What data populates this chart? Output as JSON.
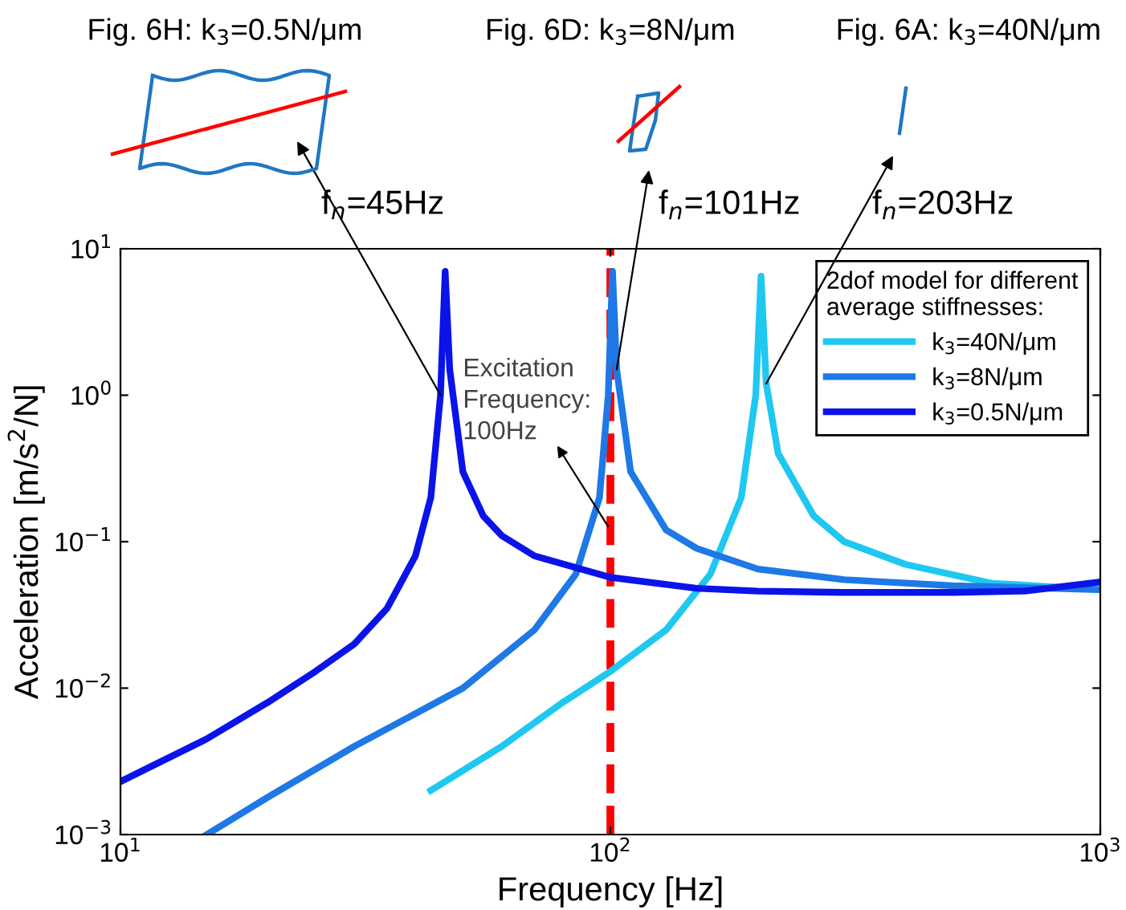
{
  "chart_data": {
    "type": "line",
    "xlabel": "Frequency [Hz]",
    "ylabel": "Acceleration [m/s$^{2}$/N]",
    "log": "xy",
    "xlim": [
      10,
      1000
    ],
    "ylim": [
      0.001,
      10
    ],
    "xticks": [
      {
        "value": 10,
        "label": "10$^{1}$"
      },
      {
        "value": 100,
        "label": "10$^{2}$"
      },
      {
        "value": 1000,
        "label": "10$^{3}$"
      }
    ],
    "yticks": [
      {
        "value": 0.001,
        "label": "10$^{−3}$"
      },
      {
        "value": 0.01,
        "label": "10$^{−2}$"
      },
      {
        "value": 0.1,
        "label": "10$^{−1}$"
      },
      {
        "value": 1,
        "label": "10$^{0}$"
      },
      {
        "value": 10,
        "label": "10$^{1}$"
      }
    ],
    "grid": false,
    "legend": "top right",
    "legend_title": "2dof model for different\naverage stiffnesses:",
    "marker": "none",
    "line_style": "solid",
    "series": [
      {
        "name": "k$_{3}$=40N/μm",
        "color": "#1ec8f0",
        "x": [
          43,
          60,
          80,
          100,
          130,
          160,
          185,
          198,
          203,
          208,
          220,
          260,
          300,
          400,
          600,
          1000
        ],
        "values": [
          0.002,
          0.004,
          0.008,
          0.013,
          0.025,
          0.06,
          0.2,
          1,
          6.5,
          1.2,
          0.4,
          0.15,
          0.1,
          0.07,
          0.052,
          0.047
        ]
      },
      {
        "name": "k$_{3}$=8N/μm",
        "color": "#1e78e6",
        "x": [
          15,
          20,
          30,
          50,
          70,
          85,
          95,
          99,
          101,
          103,
          110,
          130,
          150,
          200,
          300,
          500,
          1000
        ],
        "values": [
          0.001,
          0.0018,
          0.004,
          0.01,
          0.025,
          0.06,
          0.2,
          1,
          7,
          1.5,
          0.3,
          0.12,
          0.09,
          0.065,
          0.055,
          0.05,
          0.047
        ]
      },
      {
        "name": "k$_{3}$=0.5N/μm",
        "color": "#0a14e8",
        "x": [
          10,
          15,
          20,
          25,
          30,
          35,
          40,
          43,
          45,
          46,
          47,
          50,
          55,
          60,
          70,
          100,
          150,
          200,
          300,
          500,
          700,
          1000
        ],
        "values": [
          0.0023,
          0.0045,
          0.008,
          0.013,
          0.02,
          0.035,
          0.08,
          0.2,
          1.0,
          7,
          1.5,
          0.3,
          0.15,
          0.11,
          0.08,
          0.057,
          0.048,
          0.046,
          0.045,
          0.045,
          0.046,
          0.053
        ]
      }
    ],
    "ref_lines": [
      {
        "axis": "x",
        "value": 100,
        "color": "#ff0000",
        "line_style": "dashed"
      }
    ],
    "annotations": [
      "Fig. 6H: k$_{3}$=0.5N/μm",
      "Fig. 6D: k$_{3}$=8N/μm",
      "Fig. 6A: k$_{3}$=40N/μm",
      "f$_{n}$=45Hz",
      "f$_{n}$=101Hz",
      "f$_{n}$=203Hz",
      {
        "text": "Excitation\nFrequency:\n100Hz",
        "x": 100,
        "y": 0.12
      }
    ]
  }
}
